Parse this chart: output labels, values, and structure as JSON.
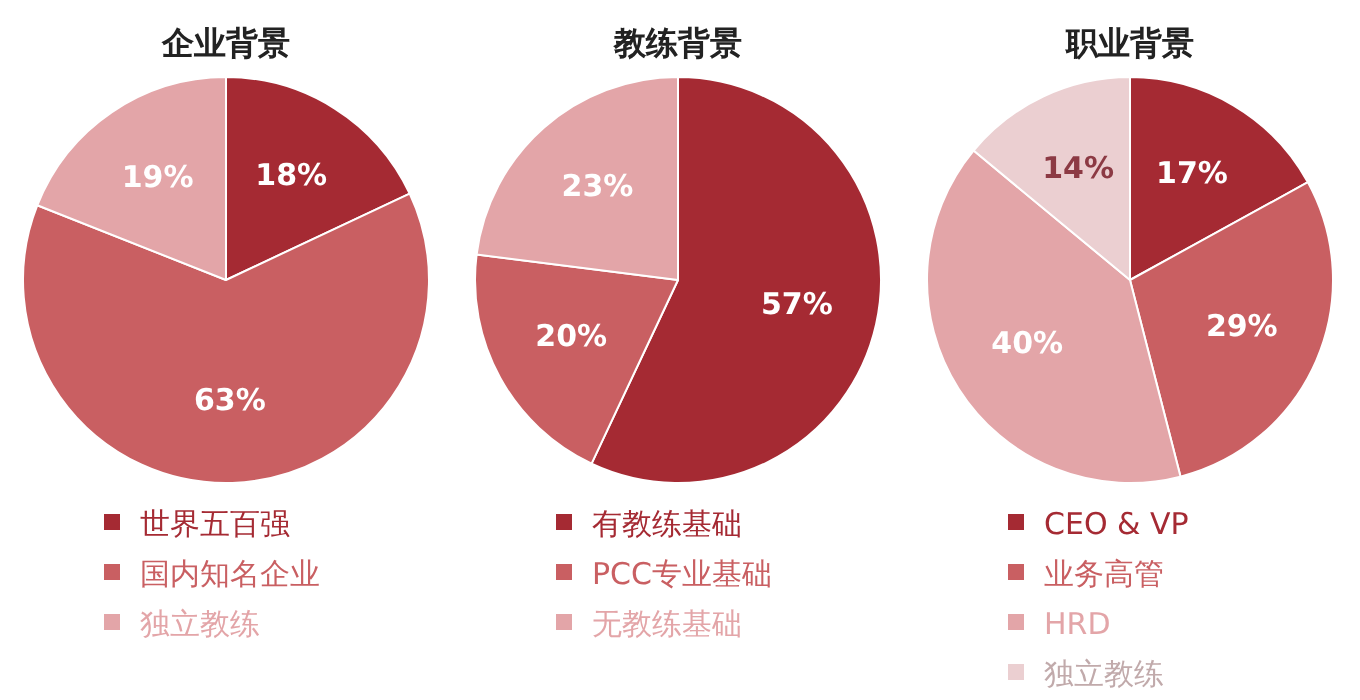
{
  "chart_data": [
    {
      "type": "pie",
      "title": "企业背景",
      "categories": [
        "世界五百强",
        "国内知名企业",
        "独立教练"
      ],
      "values": [
        18,
        63,
        19
      ],
      "value_labels": [
        "18%",
        "63%",
        "19%"
      ],
      "colors": [
        "#a52a33",
        "#c95f62",
        "#e3a5a8"
      ],
      "legend": "bottom"
    },
    {
      "type": "pie",
      "title": "教练背景",
      "categories": [
        "有教练基础",
        "PCC专业基础",
        "无教练基础"
      ],
      "values": [
        57,
        20,
        23
      ],
      "value_labels": [
        "57%",
        "20%",
        "23%"
      ],
      "colors": [
        "#a52a33",
        "#c95f62",
        "#e3a5a8"
      ],
      "legend": "bottom"
    },
    {
      "type": "pie",
      "title": "职业背景",
      "categories": [
        "CEO & VP",
        "业务高管",
        "HRD",
        "独立教练"
      ],
      "values": [
        17,
        29,
        40,
        14
      ],
      "value_labels": [
        "17%",
        "29%",
        "40%",
        "14%"
      ],
      "colors": [
        "#a52a33",
        "#c95f62",
        "#e3a5a8",
        "#ebcfd1"
      ],
      "legend": "bottom"
    }
  ]
}
